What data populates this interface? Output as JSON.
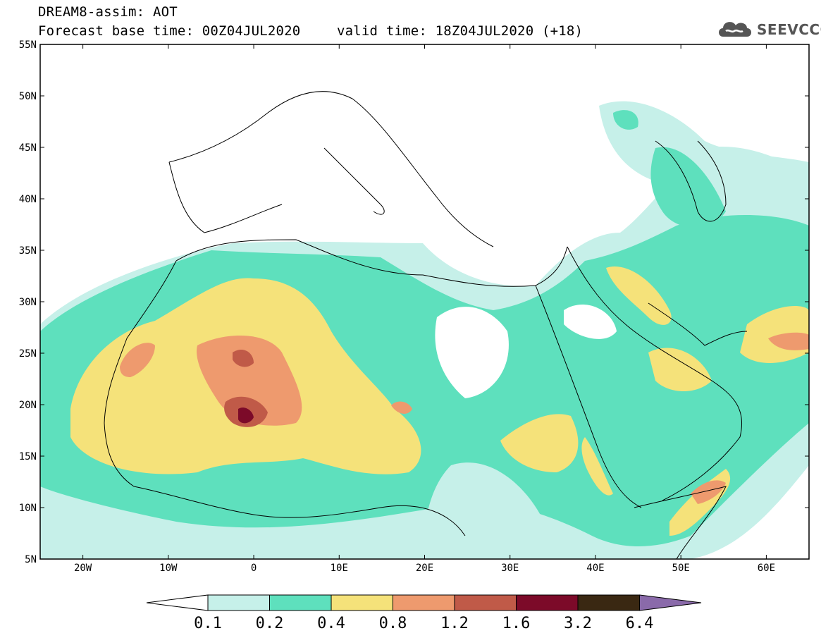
{
  "header": {
    "title": "DREAM8-assim: AOT",
    "base_time": "Forecast base time: 00Z04JUL2020",
    "valid_time": "valid time: 18Z04JUL2020 (+18)"
  },
  "logo": {
    "text": "SEEVCCC",
    "color": "#555555"
  },
  "map": {
    "lat_labels": [
      "55N",
      "50N",
      "45N",
      "40N",
      "35N",
      "30N",
      "25N",
      "20N",
      "15N",
      "10N",
      "5N"
    ],
    "lon_labels": [
      "20W",
      "10W",
      "0",
      "10E",
      "20E",
      "30E",
      "40E",
      "50E",
      "60E"
    ]
  },
  "colorbar": {
    "labels": [
      "0.1",
      "0.2",
      "0.4",
      "0.8",
      "1.2",
      "1.6",
      "3.2",
      "6.4"
    ],
    "colors": [
      "#c6f0e9",
      "#5ee0bd",
      "#f5e27a",
      "#ee9a6e",
      "#c05a48",
      "#7c0a29",
      "#3a2812",
      "#8a6aaa"
    ]
  }
}
